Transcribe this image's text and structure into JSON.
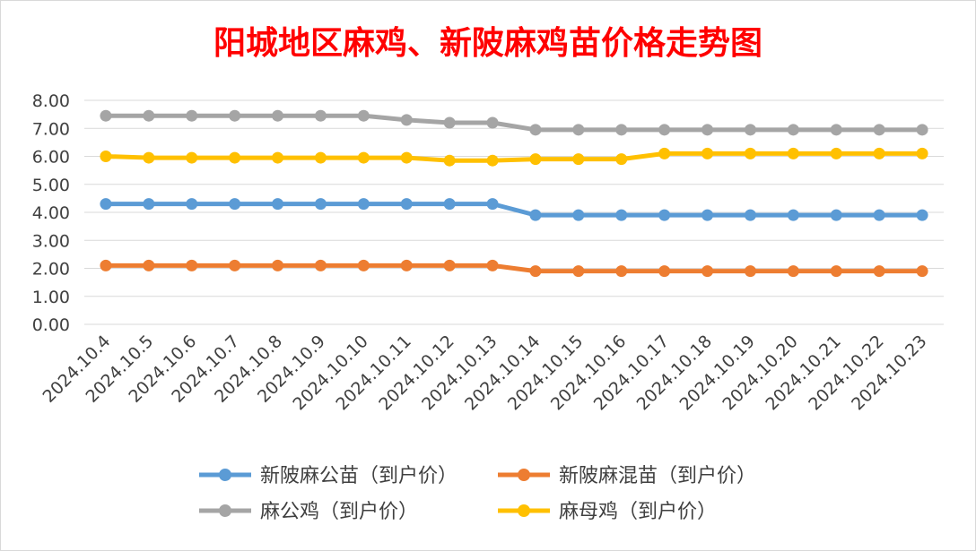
{
  "chart_data": {
    "type": "line",
    "title": "阳城地区麻鸡、新陂麻鸡苗价格走势图",
    "title_color": "#ff0000",
    "categories": [
      "2024.10.4",
      "2024.10.5",
      "2024.10.6",
      "2024.10.7",
      "2024.10.8",
      "2024.10.9",
      "2024.10.10",
      "2024.10.11",
      "2024.10.12",
      "2024.10.13",
      "2024.10.14",
      "2024.10.15",
      "2024.10.16",
      "2024.10.17",
      "2024.10.18",
      "2024.10.19",
      "2024.10.20",
      "2024.10.21",
      "2024.10.22",
      "2024.10.23"
    ],
    "ylim": [
      0,
      8
    ],
    "yticks": [
      "0.00",
      "1.00",
      "2.00",
      "3.00",
      "4.00",
      "5.00",
      "6.00",
      "7.00",
      "8.00"
    ],
    "grid": true,
    "legend_position": "bottom",
    "series": [
      {
        "name": "新陂麻公苗（到户价）",
        "color": "#5b9bd5",
        "values": [
          4.3,
          4.3,
          4.3,
          4.3,
          4.3,
          4.3,
          4.3,
          4.3,
          4.3,
          4.3,
          3.9,
          3.9,
          3.9,
          3.9,
          3.9,
          3.9,
          3.9,
          3.9,
          3.9,
          3.9
        ]
      },
      {
        "name": "新陂麻混苗（到户价）",
        "color": "#ed7d31",
        "values": [
          2.1,
          2.1,
          2.1,
          2.1,
          2.1,
          2.1,
          2.1,
          2.1,
          2.1,
          2.1,
          1.9,
          1.9,
          1.9,
          1.9,
          1.9,
          1.9,
          1.9,
          1.9,
          1.9,
          1.9
        ]
      },
      {
        "name": "麻公鸡（到户价）",
        "color": "#a5a5a5",
        "values": [
          7.45,
          7.45,
          7.45,
          7.45,
          7.45,
          7.45,
          7.45,
          7.3,
          7.2,
          7.2,
          6.95,
          6.95,
          6.95,
          6.95,
          6.95,
          6.95,
          6.95,
          6.95,
          6.95,
          6.95
        ]
      },
      {
        "name": "麻母鸡（到户价）",
        "color": "#ffc000",
        "values": [
          6.0,
          5.95,
          5.95,
          5.95,
          5.95,
          5.95,
          5.95,
          5.95,
          5.85,
          5.85,
          5.9,
          5.9,
          5.9,
          6.1,
          6.1,
          6.1,
          6.1,
          6.1,
          6.1,
          6.1
        ]
      }
    ]
  }
}
